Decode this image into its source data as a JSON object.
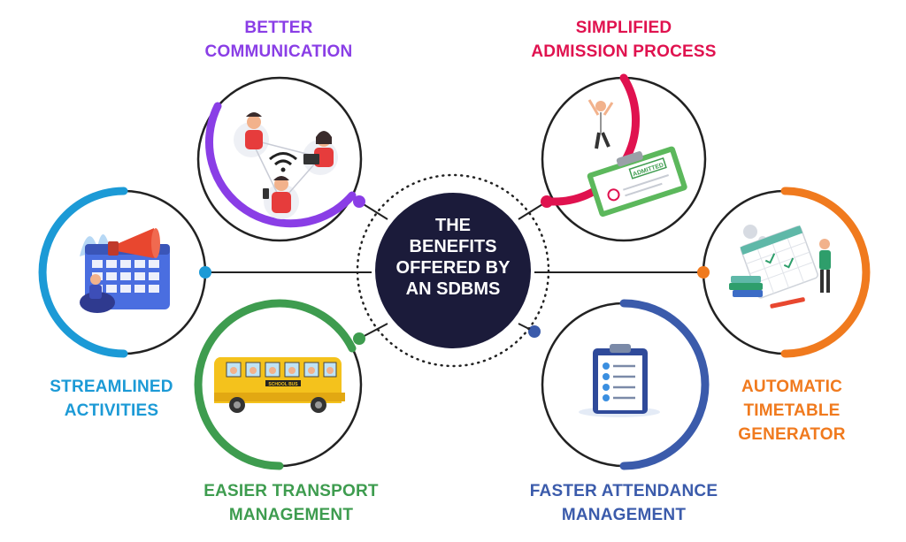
{
  "hub": {
    "lines": [
      "THE",
      "BENEFITS",
      "OFFERED BY",
      "AN SDBMS"
    ],
    "color": "#1b1b3a"
  },
  "benefits": [
    {
      "id": "better-communication",
      "lines": [
        "BETTER",
        "COMMUNICATION"
      ],
      "color": "#8a3ee6",
      "icon": "people-communicating-icon"
    },
    {
      "id": "simplified-admission",
      "lines": [
        "SIMPLIFIED",
        "ADMISSION PROCESS"
      ],
      "color": "#e0124f",
      "icon": "admitted-clipboard-icon",
      "stamp": "ADMITTED"
    },
    {
      "id": "streamlined-activities",
      "lines": [
        "STREAMLINED",
        "ACTIVITIES"
      ],
      "color": "#1c9ad6",
      "icon": "calendar-megaphone-icon"
    },
    {
      "id": "automatic-timetable",
      "lines": [
        "AUTOMATIC",
        "TIMETABLE",
        "GENERATOR"
      ],
      "color": "#f07a1e",
      "icon": "timetable-calendar-icon"
    },
    {
      "id": "easier-transport",
      "lines": [
        "EASIER TRANSPORT",
        "MANAGEMENT"
      ],
      "color": "#3e9c4f",
      "icon": "school-bus-icon",
      "bus_text": "SCHOOL BUS"
    },
    {
      "id": "faster-attendance",
      "lines": [
        "FASTER ATTENDANCE",
        "MANAGEMENT"
      ],
      "color": "#3b5bab",
      "icon": "attendance-checklist-icon"
    }
  ]
}
